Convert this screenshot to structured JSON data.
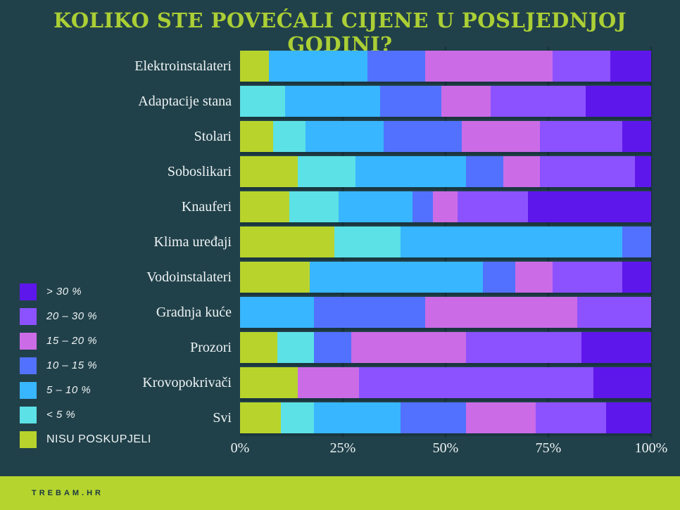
{
  "title": "KOLIKO STE POVEĆALI CIJENE U POSLJEDNJOJ GODINI?",
  "footer": {
    "brand": "TREBAM.HR"
  },
  "colors": {
    "background": "#21414A",
    "title": "#ABCF35",
    "gridline": "#1A353E",
    "axis_text": "#EDF3F4",
    "footer_bg": "#B5D42E",
    "footer_text": "#1B3840"
  },
  "legend": [
    {
      "label": "> 30 %",
      "color": "#5E17EB"
    },
    {
      "label": "20 – 30 %",
      "color": "#8C52FF"
    },
    {
      "label": "15 – 20 %",
      "color": "#CB6CE6"
    },
    {
      "label": "10 – 15 %",
      "color": "#5271FF"
    },
    {
      "label": "5 – 10 %",
      "color": "#38B6FF"
    },
    {
      "label": "< 5 %",
      "color": "#5CE1E6"
    },
    {
      "label": "NISU POSKUPJELI",
      "color": "#B8D42C"
    }
  ],
  "chart_data": {
    "type": "bar",
    "variant": "horizontal-stacked-100pct",
    "title": "KOLIKO STE POVEĆALI CIJENE U POSLJEDNJOJ GODINI?",
    "categories": [
      "Elektroinstalateri",
      "Adaptacije stana",
      "Stolari",
      "Soboslikari",
      "Knauferi",
      "Klima uređaji",
      "Vodoinstalateri",
      "Gradnja kuće",
      "Prozori",
      "Krovopokrivači",
      "Svi"
    ],
    "series": [
      {
        "name": "NISU POSKUPJELI",
        "color": "#B8D42C",
        "values": [
          7,
          0,
          8,
          14,
          12,
          23,
          17,
          0,
          9,
          14,
          10
        ]
      },
      {
        "name": "< 5 %",
        "color": "#5CE1E6",
        "values": [
          0,
          11,
          8,
          14,
          12,
          16,
          0,
          0,
          9,
          0,
          8
        ]
      },
      {
        "name": "5 – 10 %",
        "color": "#38B6FF",
        "values": [
          24,
          23,
          19,
          27,
          18,
          54,
          42,
          18,
          0,
          0,
          21
        ]
      },
      {
        "name": "10 – 15 %",
        "color": "#5271FF",
        "values": [
          14,
          15,
          19,
          9,
          5,
          7,
          8,
          27,
          9,
          0,
          16
        ]
      },
      {
        "name": "15 – 20 %",
        "color": "#CB6CE6",
        "values": [
          31,
          12,
          19,
          9,
          6,
          0,
          9,
          37,
          28,
          15,
          17
        ]
      },
      {
        "name": "20 – 30 %",
        "color": "#8C52FF",
        "values": [
          14,
          23,
          20,
          23,
          17,
          0,
          17,
          18,
          28,
          57,
          17
        ]
      },
      {
        "name": "> 30 %",
        "color": "#5E17EB",
        "values": [
          10,
          16,
          7,
          4,
          30,
          0,
          7,
          0,
          17,
          14,
          11
        ]
      }
    ],
    "x_ticks": [
      "0%",
      "25%",
      "50%",
      "75%",
      "100%"
    ],
    "xlim": [
      0,
      100
    ],
    "grid": "vertical-major",
    "legend_position": "left-bottom"
  }
}
